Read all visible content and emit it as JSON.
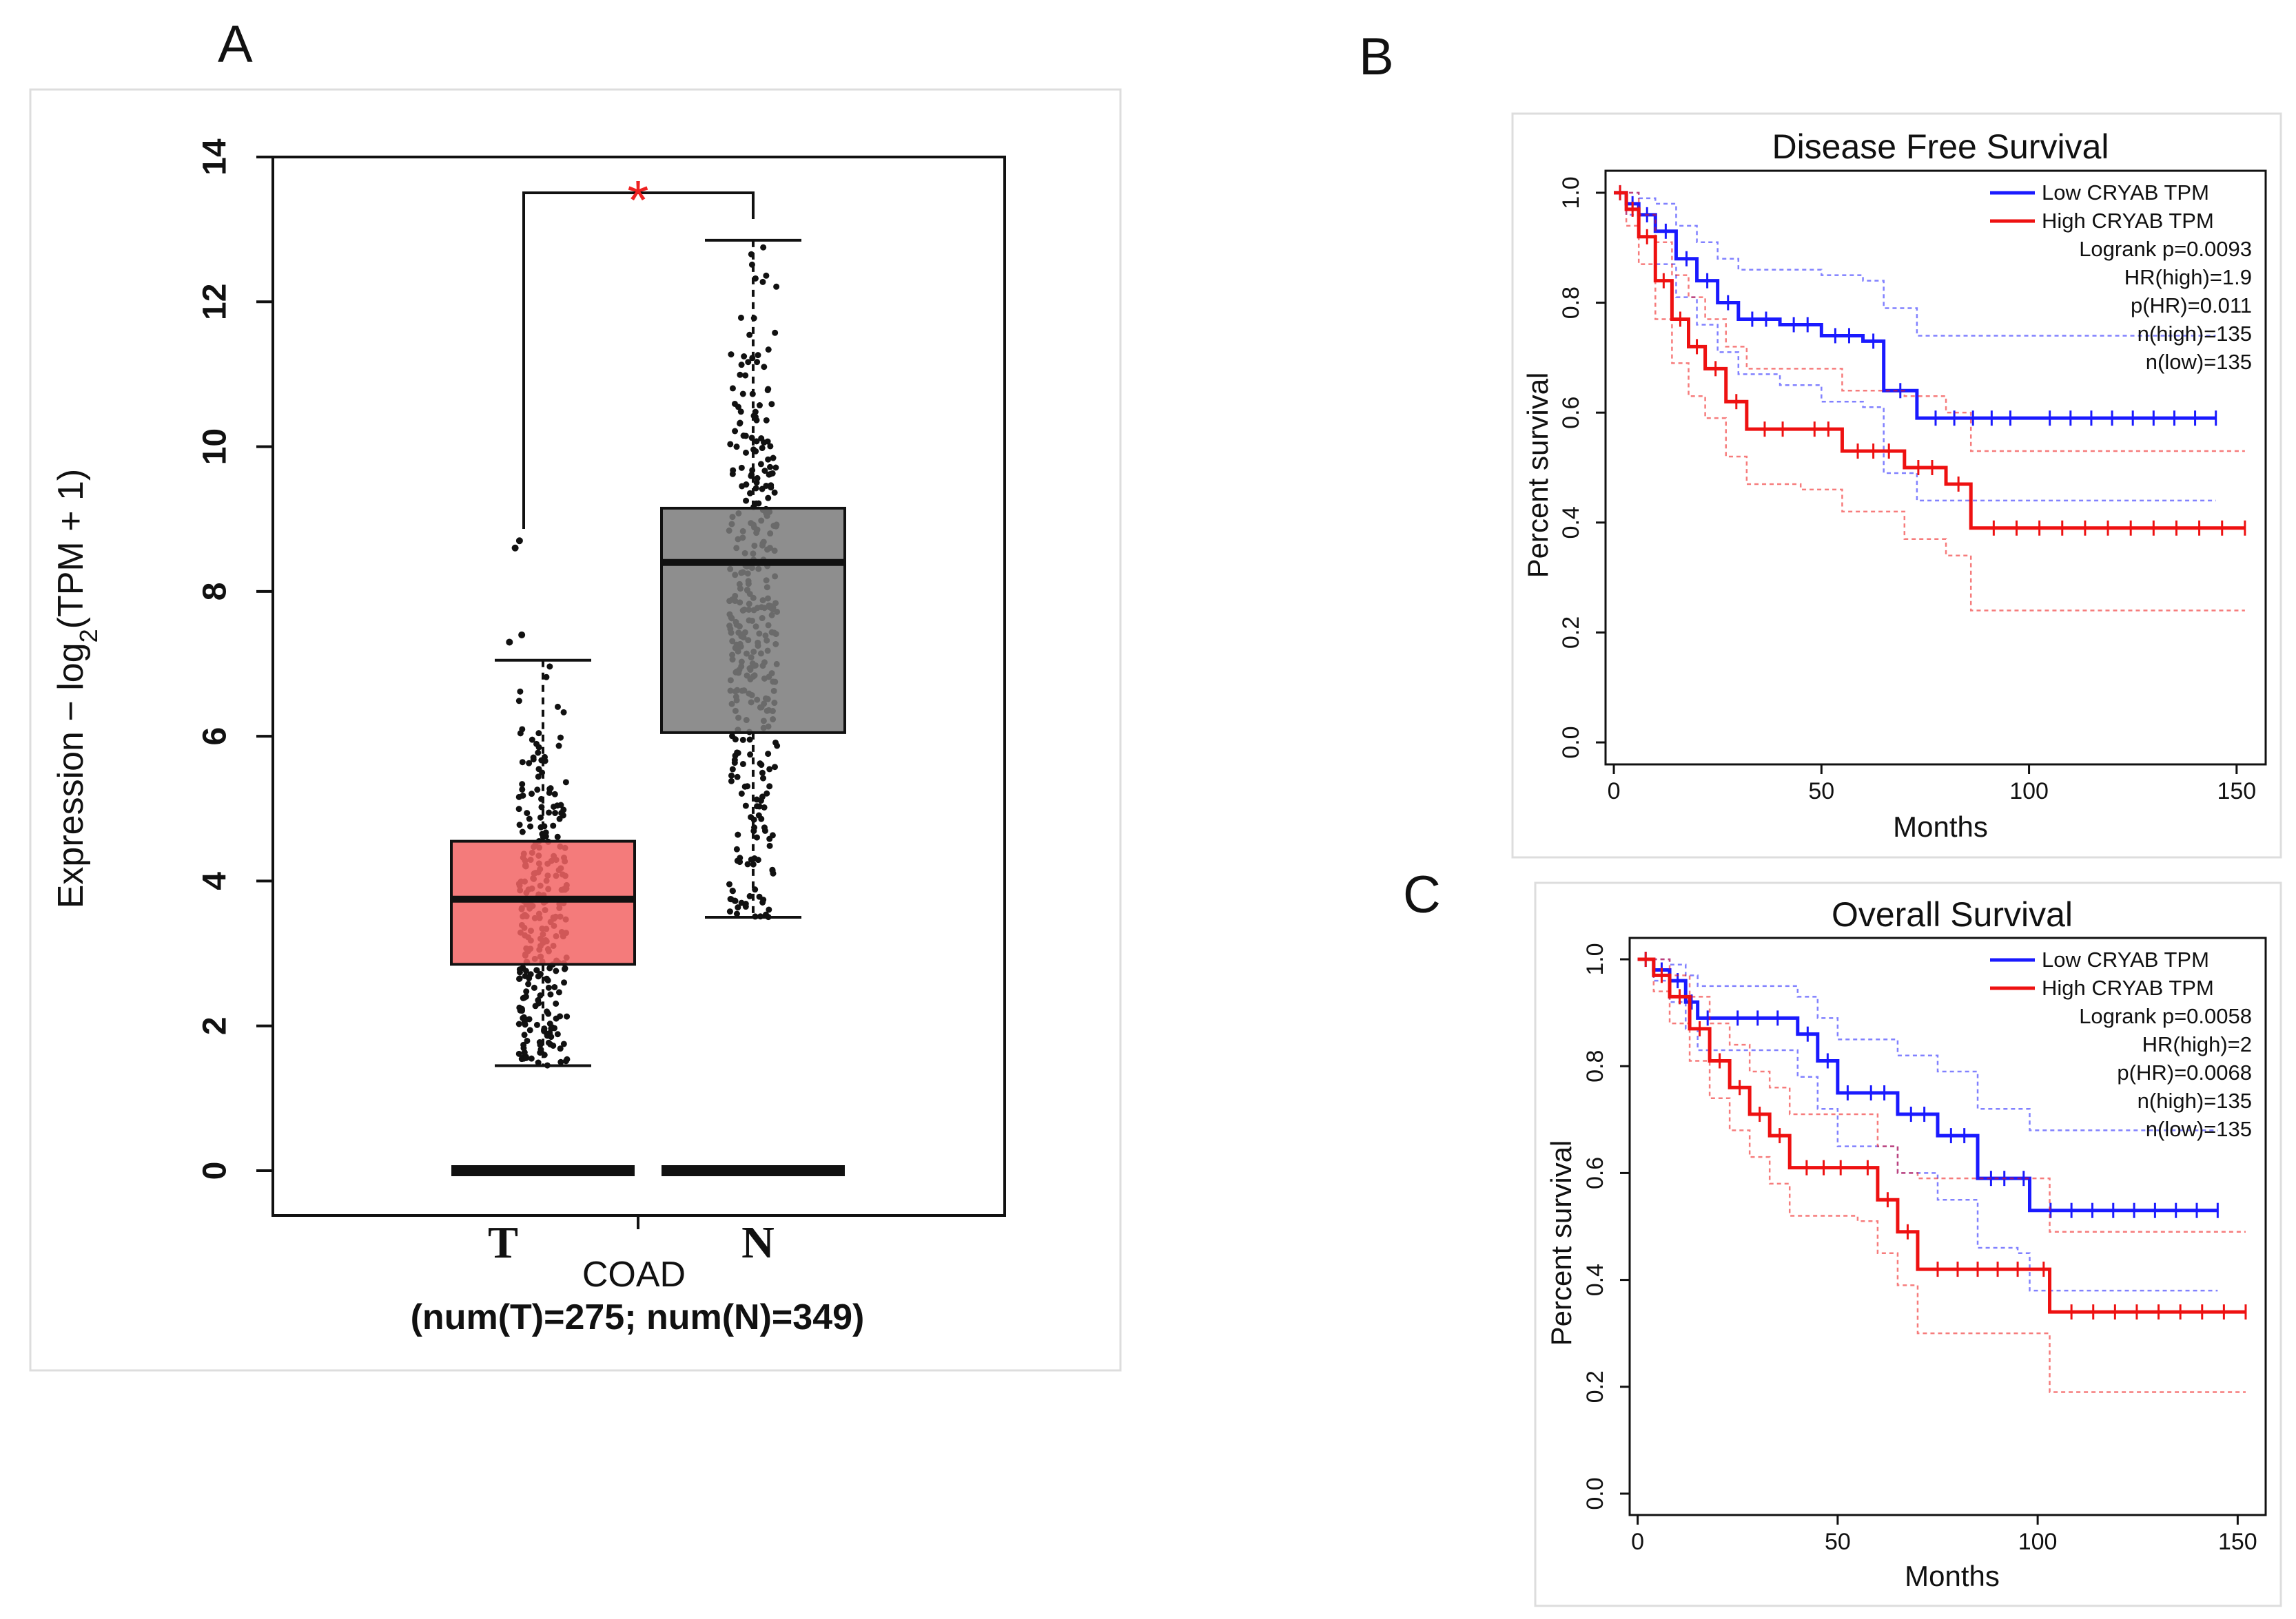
{
  "chart_data": [
    {
      "panel": "A",
      "type": "box",
      "ylabel_main": "Expression",
      "ylabel_sep": " − ",
      "ylabel_log": "log",
      "ylabel_sub": "2",
      "ylabel_rest": "(TPM + 1)",
      "ylim": [
        0,
        14
      ],
      "yticks": [
        0,
        2,
        4,
        6,
        8,
        10,
        12,
        14
      ],
      "xlabel": "COAD",
      "xsublabel": "(num(T)=275; num(N)=349)",
      "significance": "*",
      "colors": {
        "T": "#f26464",
        "N": "#7a7a7a"
      },
      "groups": [
        {
          "name": "T",
          "n": 275,
          "whisker_low": 1.45,
          "q1": 2.85,
          "median": 3.75,
          "q3": 4.55,
          "whisker_high": 7.05,
          "outliers": [
            7.3,
            7.4,
            8.6,
            8.7
          ]
        },
        {
          "name": "N",
          "n": 349,
          "whisker_low": 3.5,
          "q1": 6.05,
          "median": 8.4,
          "q3": 9.15,
          "whisker_high": 12.85,
          "outliers": []
        }
      ]
    },
    {
      "panel": "B",
      "type": "line",
      "title": "Disease Free Survival",
      "xlabel": "Months",
      "ylabel": "Percent survival",
      "xlim": [
        0,
        150
      ],
      "ylim": [
        0,
        1
      ],
      "xticks": [
        0,
        50,
        100,
        150
      ],
      "yticks": [
        "0.0",
        "0.2",
        "0.4",
        "0.6",
        "0.8",
        "1.0"
      ],
      "legend": [
        "Low CRYAB TPM",
        "High CRYAB TPM",
        "Logrank p=0.0093",
        "HR(high)=1.9",
        "p(HR)=0.011",
        "n(high)=135",
        "n(low)=135"
      ],
      "series": [
        {
          "name": "Low CRYAB TPM",
          "color": "#1a1aff",
          "x": [
            0,
            3,
            6,
            10,
            15,
            20,
            25,
            30,
            40,
            50,
            60,
            65,
            73,
            100,
            145
          ],
          "y": [
            1.0,
            0.98,
            0.96,
            0.93,
            0.88,
            0.84,
            0.8,
            0.77,
            0.76,
            0.74,
            0.73,
            0.64,
            0.59,
            0.59,
            0.59
          ],
          "ci_low": [
            1.0,
            0.96,
            0.92,
            0.87,
            0.81,
            0.76,
            0.71,
            0.67,
            0.65,
            0.62,
            0.61,
            0.49,
            0.44,
            0.44,
            0.44
          ],
          "ci_high": [
            1.0,
            1.0,
            0.99,
            0.98,
            0.94,
            0.91,
            0.88,
            0.86,
            0.86,
            0.85,
            0.84,
            0.79,
            0.74,
            0.74,
            0.74
          ]
        },
        {
          "name": "High CRYAB TPM",
          "color": "#ee1111",
          "x": [
            0,
            3,
            6,
            10,
            14,
            18,
            22,
            27,
            32,
            45,
            55,
            70,
            80,
            86,
            152
          ],
          "y": [
            1.0,
            0.97,
            0.92,
            0.84,
            0.77,
            0.72,
            0.68,
            0.62,
            0.57,
            0.57,
            0.53,
            0.5,
            0.47,
            0.39,
            0.39
          ],
          "ci_low": [
            1.0,
            0.94,
            0.87,
            0.77,
            0.69,
            0.63,
            0.59,
            0.52,
            0.47,
            0.46,
            0.42,
            0.37,
            0.34,
            0.24,
            0.24
          ],
          "ci_high": [
            1.0,
            1.0,
            0.96,
            0.91,
            0.85,
            0.81,
            0.77,
            0.72,
            0.68,
            0.68,
            0.64,
            0.63,
            0.6,
            0.53,
            0.53
          ]
        }
      ]
    },
    {
      "panel": "C",
      "type": "line",
      "title": "Overall Survival",
      "xlabel": "Months",
      "ylabel": "Percent survival",
      "xlim": [
        0,
        150
      ],
      "ylim": [
        0,
        1
      ],
      "xticks": [
        0,
        50,
        100,
        150
      ],
      "yticks": [
        "0.0",
        "0.2",
        "0.4",
        "0.6",
        "0.8",
        "1.0"
      ],
      "legend": [
        "Low CRYAB TPM",
        "High CRYAB TPM",
        "Logrank p=0.0058",
        "HR(high)=2",
        "p(HR)=0.0068",
        "n(high)=135",
        "n(low)=135"
      ],
      "series": [
        {
          "name": "Low CRYAB TPM",
          "color": "#1a1aff",
          "x": [
            0,
            4,
            8,
            12,
            15,
            20,
            40,
            45,
            50,
            55,
            65,
            75,
            85,
            95,
            98,
            145
          ],
          "y": [
            1.0,
            0.98,
            0.96,
            0.92,
            0.89,
            0.89,
            0.86,
            0.81,
            0.75,
            0.75,
            0.71,
            0.67,
            0.59,
            0.59,
            0.53,
            0.53
          ],
          "ci_low": [
            1.0,
            0.96,
            0.92,
            0.87,
            0.83,
            0.83,
            0.78,
            0.72,
            0.65,
            0.65,
            0.6,
            0.55,
            0.46,
            0.45,
            0.38,
            0.38
          ],
          "ci_high": [
            1.0,
            1.0,
            0.99,
            0.97,
            0.95,
            0.95,
            0.93,
            0.89,
            0.85,
            0.85,
            0.82,
            0.79,
            0.72,
            0.72,
            0.68,
            0.68
          ]
        },
        {
          "name": "High CRYAB TPM",
          "color": "#ee1111",
          "x": [
            0,
            4,
            8,
            13,
            18,
            23,
            28,
            33,
            38,
            55,
            60,
            65,
            70,
            100,
            103,
            152
          ],
          "y": [
            1.0,
            0.97,
            0.93,
            0.87,
            0.81,
            0.76,
            0.71,
            0.67,
            0.61,
            0.61,
            0.55,
            0.49,
            0.42,
            0.42,
            0.34,
            0.34
          ],
          "ci_low": [
            1.0,
            0.94,
            0.88,
            0.81,
            0.74,
            0.68,
            0.63,
            0.58,
            0.52,
            0.51,
            0.45,
            0.39,
            0.3,
            0.3,
            0.19,
            0.19
          ],
          "ci_high": [
            1.0,
            1.0,
            0.97,
            0.93,
            0.88,
            0.84,
            0.79,
            0.76,
            0.71,
            0.71,
            0.65,
            0.6,
            0.59,
            0.59,
            0.49,
            0.49
          ]
        }
      ]
    }
  ]
}
